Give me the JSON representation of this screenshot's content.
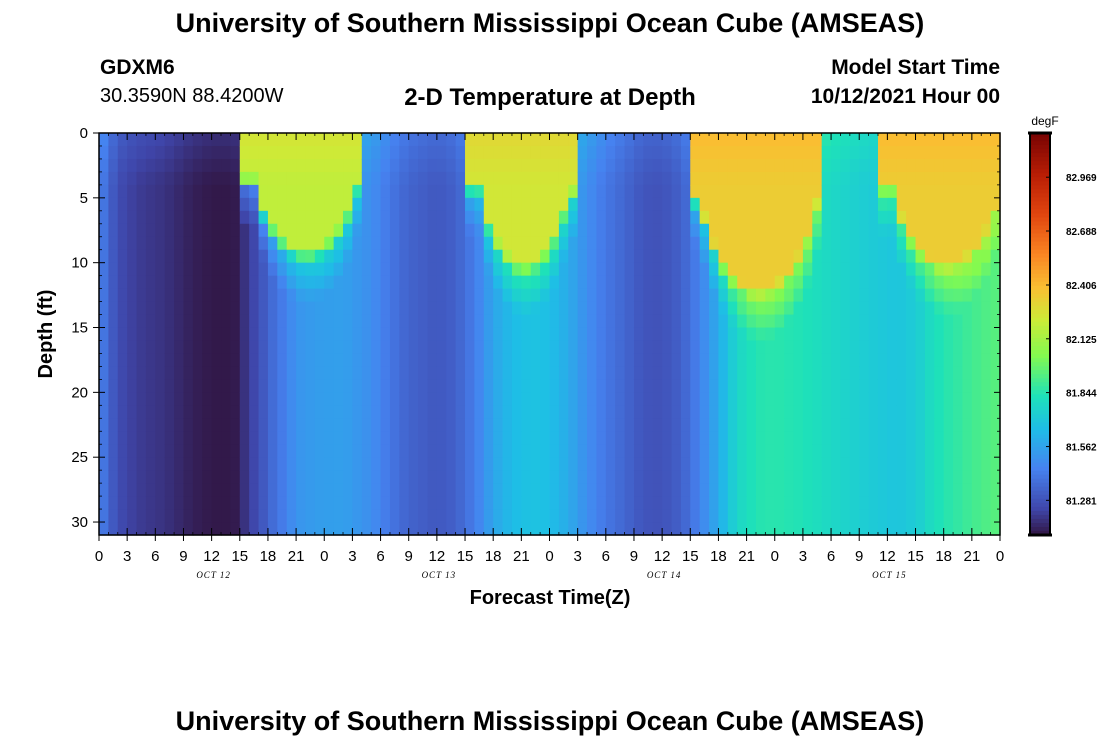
{
  "header": {
    "title": "University of Southern Mississippi Ocean Cube (AMSEAS)",
    "station": "GDXM6",
    "coordinates": "30.3590N  88.4200W",
    "subtitle": "2-D Temperature at Depth",
    "model_start_label": "Model Start Time",
    "model_start_value": "10/12/2021 Hour 00"
  },
  "footer": {
    "title_repeat": "University of Southern Mississippi Ocean Cube (AMSEAS)"
  },
  "chart_data": {
    "type": "heatmap",
    "title": "2-D Temperature at Depth",
    "xlabel": "Forecast Time(Z)",
    "ylabel": "Depth (ft)",
    "x_tick_labels": [
      "0",
      "3",
      "6",
      "9",
      "12",
      "15",
      "18",
      "21",
      "0",
      "3",
      "6",
      "9",
      "12",
      "15",
      "18",
      "21",
      "0",
      "3",
      "6",
      "9",
      "12",
      "15",
      "18",
      "21",
      "0",
      "3",
      "6",
      "9",
      "12",
      "15",
      "18",
      "21",
      "0"
    ],
    "x_range_hours": [
      0,
      96
    ],
    "day_labels": [
      {
        "label": "OCT 12",
        "hour": 12
      },
      {
        "label": "OCT 13",
        "hour": 36
      },
      {
        "label": "OCT 14",
        "hour": 60
      },
      {
        "label": "OCT 15",
        "hour": 84
      }
    ],
    "y_tick_labels": [
      "0",
      "5",
      "10",
      "15",
      "20",
      "25",
      "30"
    ],
    "y_range_ft": [
      0,
      31
    ],
    "y_inverted": true,
    "colorbar": {
      "unit": "degF",
      "labels": [
        "82.969",
        "82.688",
        "82.406",
        "82.125",
        "81.844",
        "81.562",
        "81.281"
      ],
      "label_values": [
        82.969,
        82.688,
        82.406,
        82.125,
        81.844,
        81.562,
        81.281
      ],
      "range": [
        81.1,
        83.2
      ]
    },
    "deep_profile_degF": [
      {
        "hour": 0,
        "value": 81.46
      },
      {
        "hour": 1,
        "value": 81.36
      },
      {
        "hour": 2,
        "value": 81.27
      },
      {
        "hour": 4,
        "value": 81.22
      },
      {
        "hour": 7,
        "value": 81.19
      },
      {
        "hour": 10,
        "value": 81.14
      },
      {
        "hour": 12,
        "value": 81.12
      },
      {
        "hour": 14.4,
        "value": 81.12
      },
      {
        "hour": 15.5,
        "value": 81.19
      },
      {
        "hour": 17,
        "value": 81.28
      },
      {
        "hour": 18.5,
        "value": 81.38
      },
      {
        "hour": 20,
        "value": 81.46
      },
      {
        "hour": 21,
        "value": 81.52
      },
      {
        "hour": 23,
        "value": 81.55
      },
      {
        "hour": 26,
        "value": 81.56
      },
      {
        "hour": 29,
        "value": 81.5
      },
      {
        "hour": 31,
        "value": 81.42
      },
      {
        "hour": 33,
        "value": 81.35
      },
      {
        "hour": 36,
        "value": 81.31
      },
      {
        "hour": 38,
        "value": 81.34
      },
      {
        "hour": 40,
        "value": 81.44
      },
      {
        "hour": 42,
        "value": 81.58
      },
      {
        "hour": 44,
        "value": 81.66
      },
      {
        "hour": 46,
        "value": 81.69
      },
      {
        "hour": 48,
        "value": 81.67
      },
      {
        "hour": 50,
        "value": 81.6
      },
      {
        "hour": 52,
        "value": 81.5
      },
      {
        "hour": 54,
        "value": 81.42
      },
      {
        "hour": 56,
        "value": 81.36
      },
      {
        "hour": 58,
        "value": 81.3
      },
      {
        "hour": 60,
        "value": 81.29
      },
      {
        "hour": 62,
        "value": 81.34
      },
      {
        "hour": 64,
        "value": 81.46
      },
      {
        "hour": 66,
        "value": 81.6
      },
      {
        "hour": 68,
        "value": 81.78
      },
      {
        "hour": 70,
        "value": 81.85
      },
      {
        "hour": 72,
        "value": 81.86
      },
      {
        "hour": 75,
        "value": 81.84
      },
      {
        "hour": 78,
        "value": 81.79
      },
      {
        "hour": 82,
        "value": 81.73
      },
      {
        "hour": 85,
        "value": 81.7
      },
      {
        "hour": 87,
        "value": 81.73
      },
      {
        "hour": 88.5,
        "value": 81.8
      },
      {
        "hour": 90,
        "value": 81.85
      },
      {
        "hour": 92,
        "value": 81.89
      },
      {
        "hour": 94,
        "value": 81.93
      },
      {
        "hour": 96,
        "value": 81.96
      }
    ],
    "warm_surface_events": [
      {
        "start_hour": 16.5,
        "end_hour": 27.5,
        "depth_ft": 10,
        "peak_degF": 82.2
      },
      {
        "start_hour": 40.5,
        "end_hour": 50,
        "depth_ft": 11,
        "peak_degF": 82.25
      },
      {
        "start_hour": 64,
        "end_hour": 76.5,
        "depth_ft": 13,
        "peak_degF": 82.35
      },
      {
        "start_hour": 84.5,
        "end_hour": 96,
        "depth_ft": 11,
        "peak_degF": 82.35
      }
    ]
  }
}
